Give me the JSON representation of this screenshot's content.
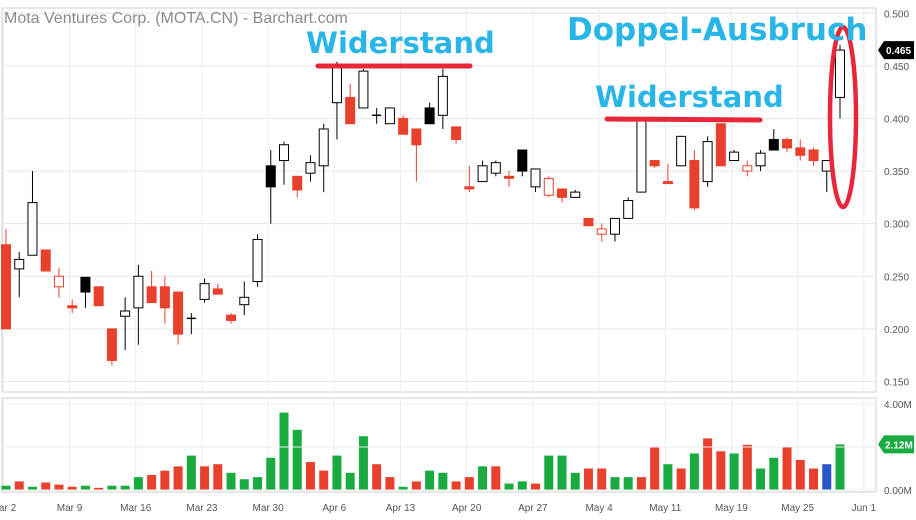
{
  "colors": {
    "up_candle": "#ffffff",
    "down_candle": "#e8402d",
    "black_candle": "#000000",
    "up_volume": "#1aab40",
    "down_volume": "#e8402d",
    "highlight_volume": "#2a55c8",
    "annotation": "#29b6e6",
    "resistance_line": "#e8263a"
  },
  "chart_data": [
    {
      "type": "candlestick",
      "title": "Mota Ventures Corp. (MOTA.CN) - Barchart.com",
      "ylim": [
        0.14,
        0.505
      ],
      "y_ticks": [
        "0.500",
        "0.450",
        "0.400",
        "0.350",
        "0.300",
        "0.250",
        "0.200",
        "0.150"
      ],
      "x_labels": [
        "Mar 2",
        "Mar 9",
        "Mar 16",
        "Mar 23",
        "Mar 30",
        "Apr 6",
        "Apr 13",
        "Apr 20",
        "Apr 27",
        "May 4",
        "May 11",
        "May 19",
        "May 25",
        "Jun 1"
      ],
      "last_price": "0.465",
      "grid": true,
      "candles": [
        {
          "o": 0.2,
          "h": 0.295,
          "l": 0.2,
          "c": 0.28,
          "k": "down"
        },
        {
          "o": 0.257,
          "h": 0.273,
          "l": 0.23,
          "c": 0.266,
          "k": "up"
        },
        {
          "o": 0.27,
          "h": 0.35,
          "l": 0.27,
          "c": 0.32,
          "k": "up"
        },
        {
          "o": 0.275,
          "h": 0.275,
          "l": 0.255,
          "c": 0.255,
          "k": "down"
        },
        {
          "o": 0.25,
          "h": 0.258,
          "l": 0.23,
          "c": 0.24,
          "k": "hollowdown"
        },
        {
          "o": 0.222,
          "h": 0.228,
          "l": 0.215,
          "c": 0.22,
          "k": "down"
        },
        {
          "o": 0.235,
          "h": 0.249,
          "l": 0.22,
          "c": 0.249,
          "k": "black"
        },
        {
          "o": 0.24,
          "h": 0.24,
          "l": 0.222,
          "c": 0.222,
          "k": "down"
        },
        {
          "o": 0.2,
          "h": 0.2,
          "l": 0.165,
          "c": 0.17,
          "k": "down"
        },
        {
          "o": 0.212,
          "h": 0.23,
          "l": 0.18,
          "c": 0.217,
          "k": "up"
        },
        {
          "o": 0.22,
          "h": 0.261,
          "l": 0.185,
          "c": 0.25,
          "k": "up"
        },
        {
          "o": 0.24,
          "h": 0.255,
          "l": 0.225,
          "c": 0.225,
          "k": "down"
        },
        {
          "o": 0.24,
          "h": 0.25,
          "l": 0.205,
          "c": 0.22,
          "k": "down"
        },
        {
          "o": 0.235,
          "h": 0.235,
          "l": 0.185,
          "c": 0.195,
          "k": "down"
        },
        {
          "o": 0.21,
          "h": 0.215,
          "l": 0.195,
          "c": 0.21,
          "k": "cross"
        },
        {
          "o": 0.228,
          "h": 0.248,
          "l": 0.225,
          "c": 0.243,
          "k": "up"
        },
        {
          "o": 0.238,
          "h": 0.243,
          "l": 0.233,
          "c": 0.233,
          "k": "down"
        },
        {
          "o": 0.213,
          "h": 0.215,
          "l": 0.205,
          "c": 0.208,
          "k": "down"
        },
        {
          "o": 0.223,
          "h": 0.245,
          "l": 0.213,
          "c": 0.23,
          "k": "up"
        },
        {
          "o": 0.245,
          "h": 0.29,
          "l": 0.24,
          "c": 0.285,
          "k": "up"
        },
        {
          "o": 0.335,
          "h": 0.37,
          "l": 0.3,
          "c": 0.355,
          "k": "black"
        },
        {
          "o": 0.36,
          "h": 0.378,
          "l": 0.337,
          "c": 0.375,
          "k": "up"
        },
        {
          "o": 0.345,
          "h": 0.345,
          "l": 0.325,
          "c": 0.332,
          "k": "down"
        },
        {
          "o": 0.348,
          "h": 0.365,
          "l": 0.34,
          "c": 0.358,
          "k": "up"
        },
        {
          "o": 0.355,
          "h": 0.395,
          "l": 0.33,
          "c": 0.39,
          "k": "up"
        },
        {
          "o": 0.415,
          "h": 0.454,
          "l": 0.38,
          "c": 0.45,
          "k": "up"
        },
        {
          "o": 0.42,
          "h": 0.433,
          "l": 0.395,
          "c": 0.395,
          "k": "down"
        },
        {
          "o": 0.41,
          "h": 0.447,
          "l": 0.41,
          "c": 0.445,
          "k": "up"
        },
        {
          "o": 0.4,
          "h": 0.41,
          "l": 0.395,
          "c": 0.403,
          "k": "cross"
        },
        {
          "o": 0.41,
          "h": 0.41,
          "l": 0.395,
          "c": 0.395,
          "k": "hollowup"
        },
        {
          "o": 0.4,
          "h": 0.403,
          "l": 0.385,
          "c": 0.385,
          "k": "down"
        },
        {
          "o": 0.39,
          "h": 0.39,
          "l": 0.34,
          "c": 0.375,
          "k": "down"
        },
        {
          "o": 0.395,
          "h": 0.415,
          "l": 0.395,
          "c": 0.41,
          "k": "black"
        },
        {
          "o": 0.403,
          "h": 0.447,
          "l": 0.39,
          "c": 0.44,
          "k": "up"
        },
        {
          "o": 0.392,
          "h": 0.392,
          "l": 0.376,
          "c": 0.38,
          "k": "down"
        },
        {
          "o": 0.335,
          "h": 0.355,
          "l": 0.33,
          "c": 0.335,
          "k": "down"
        },
        {
          "o": 0.34,
          "h": 0.36,
          "l": 0.34,
          "c": 0.355,
          "k": "up"
        },
        {
          "o": 0.348,
          "h": 0.36,
          "l": 0.345,
          "c": 0.358,
          "k": "up"
        },
        {
          "o": 0.345,
          "h": 0.35,
          "l": 0.335,
          "c": 0.345,
          "k": "down"
        },
        {
          "o": 0.37,
          "h": 0.37,
          "l": 0.345,
          "c": 0.35,
          "k": "black"
        },
        {
          "o": 0.335,
          "h": 0.352,
          "l": 0.33,
          "c": 0.352,
          "k": "up"
        },
        {
          "o": 0.343,
          "h": 0.345,
          "l": 0.325,
          "c": 0.327,
          "k": "hollowdown"
        },
        {
          "o": 0.333,
          "h": 0.333,
          "l": 0.32,
          "c": 0.325,
          "k": "down"
        },
        {
          "o": 0.325,
          "h": 0.332,
          "l": 0.325,
          "c": 0.33,
          "k": "up"
        },
        {
          "o": 0.305,
          "h": 0.305,
          "l": 0.298,
          "c": 0.298,
          "k": "down"
        },
        {
          "o": 0.295,
          "h": 0.3,
          "l": 0.283,
          "c": 0.29,
          "k": "hollowdown"
        },
        {
          "o": 0.29,
          "h": 0.305,
          "l": 0.283,
          "c": 0.305,
          "k": "up"
        },
        {
          "o": 0.305,
          "h": 0.325,
          "l": 0.305,
          "c": 0.322,
          "k": "up"
        },
        {
          "o": 0.33,
          "h": 0.4,
          "l": 0.33,
          "c": 0.4,
          "k": "up"
        },
        {
          "o": 0.36,
          "h": 0.36,
          "l": 0.353,
          "c": 0.355,
          "k": "down"
        },
        {
          "o": 0.34,
          "h": 0.357,
          "l": 0.34,
          "c": 0.34,
          "k": "down"
        },
        {
          "o": 0.355,
          "h": 0.383,
          "l": 0.355,
          "c": 0.383,
          "k": "up"
        },
        {
          "o": 0.36,
          "h": 0.37,
          "l": 0.313,
          "c": 0.315,
          "k": "down"
        },
        {
          "o": 0.34,
          "h": 0.383,
          "l": 0.335,
          "c": 0.378,
          "k": "up"
        },
        {
          "o": 0.395,
          "h": 0.395,
          "l": 0.355,
          "c": 0.355,
          "k": "down"
        },
        {
          "o": 0.36,
          "h": 0.37,
          "l": 0.36,
          "c": 0.368,
          "k": "up"
        },
        {
          "o": 0.355,
          "h": 0.36,
          "l": 0.345,
          "c": 0.35,
          "k": "hollowdown"
        },
        {
          "o": 0.355,
          "h": 0.37,
          "l": 0.35,
          "c": 0.367,
          "k": "up"
        },
        {
          "o": 0.38,
          "h": 0.39,
          "l": 0.37,
          "c": 0.37,
          "k": "black"
        },
        {
          "o": 0.38,
          "h": 0.382,
          "l": 0.368,
          "c": 0.372,
          "k": "down"
        },
        {
          "o": 0.372,
          "h": 0.38,
          "l": 0.36,
          "c": 0.365,
          "k": "down"
        },
        {
          "o": 0.37,
          "h": 0.372,
          "l": 0.355,
          "c": 0.36,
          "k": "down"
        },
        {
          "o": 0.35,
          "h": 0.36,
          "l": 0.33,
          "c": 0.36,
          "k": "up"
        },
        {
          "o": 0.42,
          "h": 0.47,
          "l": 0.4,
          "c": 0.465,
          "k": "up"
        }
      ]
    },
    {
      "type": "bar",
      "title": "",
      "y_ticks": [
        "4.00M",
        "2.00M",
        "0.00M"
      ],
      "ylim": [
        0,
        4.0
      ],
      "last_volume": "2.12M",
      "values": [
        0.2,
        0.4,
        0.15,
        0.35,
        0.25,
        0.15,
        0.2,
        0.1,
        0.2,
        0.2,
        0.6,
        0.7,
        0.9,
        1.1,
        1.6,
        1.1,
        1.2,
        0.8,
        0.5,
        0.6,
        1.5,
        3.6,
        2.8,
        1.3,
        0.9,
        1.6,
        0.8,
        2.5,
        1.2,
        0.6,
        0.15,
        0.4,
        0.9,
        0.8,
        0.4,
        0.6,
        1.1,
        1.1,
        0.3,
        0.4,
        0.3,
        1.6,
        1.6,
        0.8,
        1.0,
        1.0,
        0.6,
        0.6,
        0.6,
        2.0,
        1.2,
        1.0,
        1.7,
        2.4,
        1.8,
        1.7,
        2.1,
        1.0,
        1.5,
        2.0,
        1.4,
        1.0,
        1.2,
        2.12
      ],
      "colors": [
        "up",
        "down",
        "up",
        "down",
        "down",
        "down",
        "up",
        "down",
        "up",
        "up",
        "up",
        "down",
        "down",
        "down",
        "up",
        "down",
        "down",
        "up",
        "up",
        "up",
        "up",
        "up",
        "up",
        "down",
        "down",
        "up",
        "up",
        "up",
        "down",
        "down",
        "up",
        "down",
        "up",
        "up",
        "down",
        "down",
        "up",
        "down",
        "up",
        "up",
        "down",
        "up",
        "up",
        "up",
        "down",
        "down",
        "up",
        "up",
        "down",
        "down",
        "up",
        "down",
        "up",
        "down",
        "down",
        "up",
        "down",
        "up",
        "up",
        "down",
        "down",
        "down",
        "blue",
        "up"
      ]
    }
  ],
  "annotations": {
    "resistance1": "Widerstand",
    "resistance2": "Widerstand",
    "breakout": "Doppel-Ausbruch"
  }
}
